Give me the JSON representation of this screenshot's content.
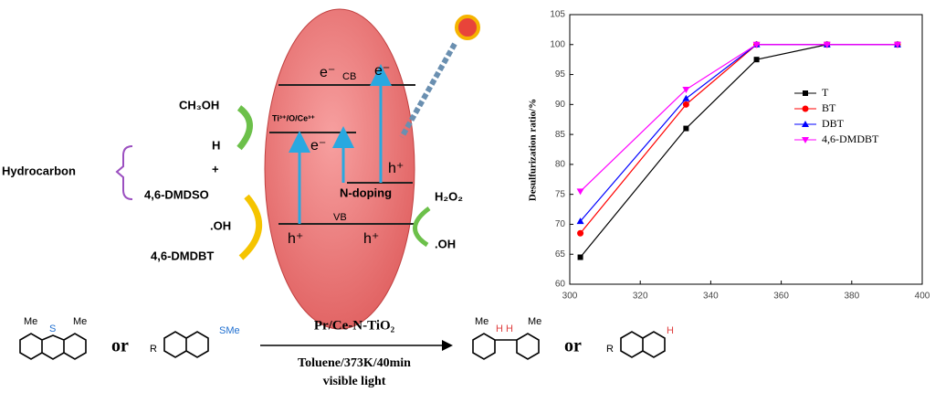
{
  "diagram": {
    "cb": "CB",
    "vb": "VB",
    "electrons": [
      "e⁻",
      "e⁻",
      "e⁻"
    ],
    "holes": [
      "h⁺",
      "h⁺",
      "h⁺"
    ],
    "ti_level": "Ti³⁺/O/Ce³⁺",
    "n_doping": "N-doping",
    "methanol": "CH₃OH",
    "h": "H",
    "plus": "+",
    "hydrocarbon": "Hydrocarbon",
    "dmdso": "4,6-DMDSO",
    "oh_left": ".OH",
    "dmdbt": "4,6-DMDBT",
    "h2o2": "H₂O₂",
    "oh_right": ".OH"
  },
  "reaction": {
    "me": [
      "Me",
      "Me",
      "Me",
      "Me"
    ],
    "s": "S",
    "sme": "SMe",
    "r": [
      "R",
      "R"
    ],
    "or": [
      "or",
      "or"
    ],
    "catalyst": "Pr/Ce-N-TiO₂",
    "conditions": "Toluene/373K/40min",
    "light": "visible light",
    "h_pair": "H H",
    "h_single": "H"
  },
  "chart_data": {
    "type": "line",
    "y_label": "Desulfurization ratio/%",
    "xlim": [
      300,
      400
    ],
    "xticks": [
      300,
      320,
      340,
      360,
      380,
      400
    ],
    "ylim": [
      60,
      105
    ],
    "yticks": [
      60,
      65,
      70,
      75,
      80,
      85,
      90,
      95,
      100,
      105
    ],
    "x": [
      303,
      333,
      353,
      373,
      393
    ],
    "legend": "right",
    "series": [
      {
        "name": "T",
        "color": "#000000",
        "marker": "square",
        "values": [
          64.5,
          86,
          97.5,
          100,
          100
        ]
      },
      {
        "name": "BT",
        "color": "#ff0000",
        "marker": "circle",
        "values": [
          68.5,
          90,
          100,
          100,
          100
        ]
      },
      {
        "name": "DBT",
        "color": "#0000ff",
        "marker": "triangle",
        "values": [
          70.5,
          91,
          100,
          100,
          100
        ]
      },
      {
        "name": "4,6-DMDBT",
        "color": "#ff00ff",
        "marker": "triangle-down",
        "values": [
          75.5,
          92.5,
          100,
          100,
          100
        ]
      }
    ]
  }
}
